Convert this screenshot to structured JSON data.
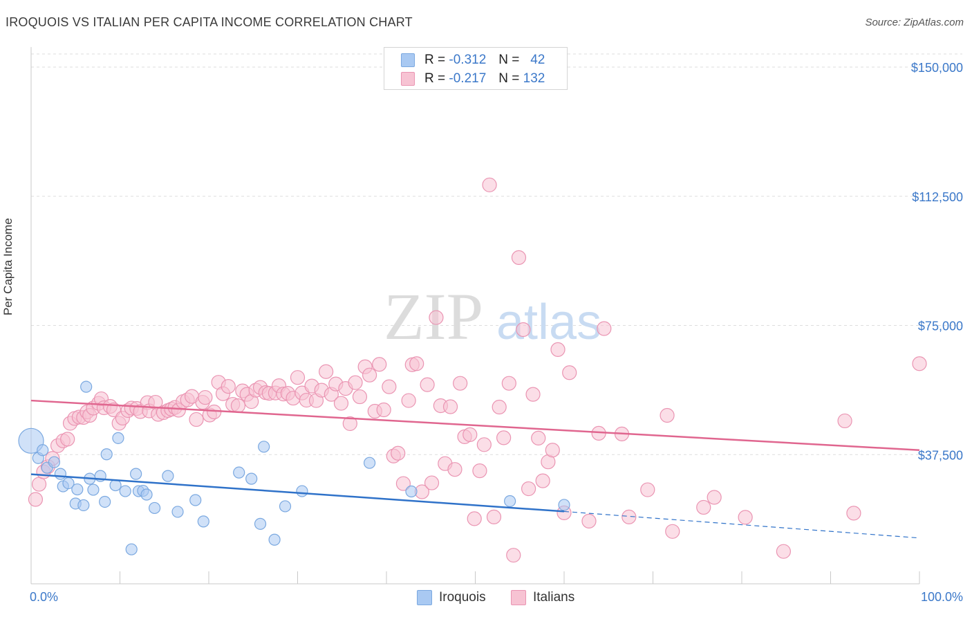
{
  "title": "IROQUOIS VS ITALIAN PER CAPITA INCOME CORRELATION CHART",
  "source": "Source: ZipAtlas.com",
  "watermark": {
    "zip": "ZIP",
    "atlas": "atlas"
  },
  "legend": {
    "rows": [
      {
        "r_label": "R =",
        "r_value": "-0.312",
        "n_label": "N =",
        "n_value": "42",
        "color": "#a9c9f2",
        "border": "#7aa8e0"
      },
      {
        "r_label": "R =",
        "r_value": "-0.217",
        "n_label": "N =",
        "n_value": "132",
        "color": "#f7c3d3",
        "border": "#ea94b2"
      }
    ]
  },
  "bottom_legend": [
    {
      "label": "Iroquois",
      "color": "#a9c9f2",
      "border": "#7aa8e0"
    },
    {
      "label": "Italians",
      "color": "#f7c3d3",
      "border": "#ea94b2"
    }
  ],
  "chart_data": {
    "type": "scatter",
    "title": "IROQUOIS VS ITALIAN PER CAPITA INCOME CORRELATION CHART",
    "ylabel": "Per Capita Income",
    "xlabel": "",
    "xlim": [
      0,
      100
    ],
    "ylim": [
      0,
      155000
    ],
    "x_tick_labels": [
      "0.0%",
      "100.0%"
    ],
    "y_ticks": [
      37500,
      75000,
      112500,
      150000
    ],
    "y_tick_labels": [
      "$37,500",
      "$75,000",
      "$112,500",
      "$150,000"
    ],
    "grid": "horizontal dashed",
    "legend_position": "top-center",
    "series": [
      {
        "name": "Iroquois",
        "color": "#7aa8e0",
        "fill": "#a9c9f2",
        "r": -0.312,
        "n": 42,
        "trend": {
          "x0": 0,
          "y0": 31800,
          "x1": 60,
          "y1": 21000,
          "dash_to_x": 100,
          "dash_to_y": 13300
        },
        "points": [
          [
            0,
            41500,
            18
          ],
          [
            0.8,
            36500,
            8
          ],
          [
            1.3,
            38800,
            8
          ],
          [
            1.8,
            33700,
            8
          ],
          [
            2.6,
            35300,
            8
          ],
          [
            3.3,
            31900,
            8
          ],
          [
            3.6,
            28300,
            8
          ],
          [
            4.2,
            29200,
            8
          ],
          [
            5.0,
            23300,
            8
          ],
          [
            5.2,
            27400,
            8
          ],
          [
            5.9,
            22800,
            8
          ],
          [
            6.2,
            57200,
            8
          ],
          [
            6.6,
            30500,
            8
          ],
          [
            7.0,
            27300,
            8
          ],
          [
            7.8,
            31300,
            8
          ],
          [
            8.3,
            23800,
            8
          ],
          [
            8.5,
            37600,
            8
          ],
          [
            9.5,
            28600,
            8
          ],
          [
            9.8,
            42300,
            8
          ],
          [
            10.6,
            26900,
            8
          ],
          [
            11.3,
            10000,
            8
          ],
          [
            11.8,
            31900,
            8
          ],
          [
            12.1,
            26900,
            8
          ],
          [
            12.6,
            27000,
            8
          ],
          [
            13.0,
            25900,
            8
          ],
          [
            13.9,
            22000,
            8
          ],
          [
            15.4,
            31300,
            8
          ],
          [
            16.5,
            20900,
            8
          ],
          [
            18.5,
            24300,
            8
          ],
          [
            19.4,
            18100,
            8
          ],
          [
            23.4,
            32300,
            8
          ],
          [
            24.8,
            30500,
            8
          ],
          [
            25.8,
            17400,
            8
          ],
          [
            26.2,
            39800,
            8
          ],
          [
            27.4,
            12800,
            8
          ],
          [
            28.6,
            22500,
            8
          ],
          [
            30.5,
            26900,
            8
          ],
          [
            38.1,
            35100,
            8
          ],
          [
            42.8,
            26800,
            8
          ],
          [
            53.9,
            24000,
            8
          ],
          [
            60.0,
            22900,
            8
          ],
          [
            0.3,
            26000,
            0
          ]
        ]
      },
      {
        "name": "Italians",
        "color": "#ea94b2",
        "fill": "#f7c3d3",
        "r": -0.217,
        "n": 132,
        "trend": {
          "x0": 0,
          "y0": 53200,
          "x1": 100,
          "y1": 38800
        },
        "points": [
          [
            0.5,
            24500,
            10
          ],
          [
            0.9,
            28900,
            10
          ],
          [
            1.4,
            32500,
            10
          ],
          [
            1.9,
            34000,
            10
          ],
          [
            2.4,
            36400,
            10
          ],
          [
            3.0,
            40100,
            10
          ],
          [
            3.6,
            41500,
            10
          ],
          [
            4.1,
            42000,
            10
          ],
          [
            4.4,
            46600,
            10
          ],
          [
            4.9,
            48000,
            10
          ],
          [
            5.4,
            48400,
            10
          ],
          [
            5.9,
            48300,
            10
          ],
          [
            6.3,
            49900,
            10
          ],
          [
            6.6,
            48900,
            10
          ],
          [
            7.0,
            51000,
            10
          ],
          [
            7.6,
            52400,
            10
          ],
          [
            7.9,
            53700,
            10
          ],
          [
            8.2,
            51100,
            10
          ],
          [
            8.9,
            51500,
            10
          ],
          [
            9.3,
            50500,
            10
          ],
          [
            9.9,
            46600,
            10
          ],
          [
            10.3,
            48100,
            10
          ],
          [
            10.9,
            50300,
            10
          ],
          [
            11.3,
            51000,
            10
          ],
          [
            11.9,
            50900,
            10
          ],
          [
            12.3,
            50000,
            10
          ],
          [
            13.1,
            52600,
            10
          ],
          [
            13.3,
            50200,
            10
          ],
          [
            14.0,
            52700,
            10
          ],
          [
            14.3,
            49200,
            10
          ],
          [
            14.9,
            49700,
            10
          ],
          [
            15.4,
            50300,
            10
          ],
          [
            15.8,
            50700,
            10
          ],
          [
            16.2,
            51200,
            10
          ],
          [
            16.6,
            50400,
            10
          ],
          [
            17.1,
            52900,
            10
          ],
          [
            17.6,
            53400,
            10
          ],
          [
            18.1,
            54400,
            10
          ],
          [
            18.6,
            47700,
            10
          ],
          [
            19.3,
            52700,
            10
          ],
          [
            19.6,
            54100,
            10
          ],
          [
            20.1,
            49000,
            10
          ],
          [
            20.6,
            49900,
            10
          ],
          [
            21.1,
            58500,
            10
          ],
          [
            21.6,
            55200,
            10
          ],
          [
            22.2,
            57300,
            10
          ],
          [
            22.7,
            52100,
            10
          ],
          [
            23.3,
            51700,
            10
          ],
          [
            23.8,
            56000,
            10
          ],
          [
            24.3,
            55000,
            10
          ],
          [
            24.8,
            52900,
            10
          ],
          [
            25.3,
            56200,
            10
          ],
          [
            25.8,
            57000,
            10
          ],
          [
            26.4,
            55500,
            10
          ],
          [
            26.8,
            55300,
            10
          ],
          [
            27.5,
            55400,
            10
          ],
          [
            27.9,
            57500,
            10
          ],
          [
            28.4,
            55100,
            10
          ],
          [
            28.9,
            55300,
            10
          ],
          [
            29.5,
            53900,
            10
          ],
          [
            30.0,
            59900,
            10
          ],
          [
            30.5,
            55400,
            10
          ],
          [
            31.0,
            53300,
            10
          ],
          [
            31.6,
            57400,
            10
          ],
          [
            32.1,
            53200,
            10
          ],
          [
            32.7,
            56200,
            10
          ],
          [
            33.2,
            61600,
            10
          ],
          [
            33.8,
            55000,
            10
          ],
          [
            34.3,
            58000,
            10
          ],
          [
            34.9,
            52400,
            10
          ],
          [
            35.4,
            56700,
            10
          ],
          [
            35.9,
            46500,
            10
          ],
          [
            36.5,
            58400,
            10
          ],
          [
            37.0,
            54300,
            10
          ],
          [
            37.6,
            63000,
            10
          ],
          [
            38.1,
            60600,
            10
          ],
          [
            38.7,
            50100,
            10
          ],
          [
            39.2,
            63700,
            10
          ],
          [
            39.7,
            50500,
            10
          ],
          [
            40.3,
            57200,
            10
          ],
          [
            40.8,
            37100,
            10
          ],
          [
            41.3,
            37900,
            10
          ],
          [
            41.9,
            29100,
            10
          ],
          [
            42.5,
            53200,
            10
          ],
          [
            42.9,
            63600,
            10
          ],
          [
            43.4,
            63900,
            10
          ],
          [
            44.0,
            26700,
            10
          ],
          [
            44.6,
            57800,
            10
          ],
          [
            45.1,
            29300,
            10
          ],
          [
            45.6,
            77300,
            10
          ],
          [
            46.1,
            51700,
            10
          ],
          [
            46.6,
            34900,
            10
          ],
          [
            47.2,
            51400,
            10
          ],
          [
            47.7,
            33200,
            10
          ],
          [
            48.3,
            58200,
            10
          ],
          [
            48.8,
            42700,
            10
          ],
          [
            49.4,
            43300,
            10
          ],
          [
            49.9,
            18900,
            10
          ],
          [
            50.5,
            32800,
            10
          ],
          [
            51.0,
            40400,
            10
          ],
          [
            51.6,
            115800,
            10
          ],
          [
            52.1,
            19400,
            10
          ],
          [
            52.7,
            51300,
            10
          ],
          [
            53.2,
            42400,
            10
          ],
          [
            53.8,
            58200,
            10
          ],
          [
            54.3,
            8300,
            10
          ],
          [
            54.9,
            94700,
            10
          ],
          [
            55.4,
            73800,
            10
          ],
          [
            56.0,
            27600,
            10
          ],
          [
            56.5,
            55000,
            10
          ],
          [
            57.1,
            42300,
            10
          ],
          [
            57.6,
            29900,
            10
          ],
          [
            58.2,
            35400,
            10
          ],
          [
            58.7,
            38800,
            10
          ],
          [
            59.3,
            68000,
            10
          ],
          [
            60.0,
            20600,
            10
          ],
          [
            60.6,
            61300,
            10
          ],
          [
            62.8,
            18200,
            10
          ],
          [
            63.9,
            43700,
            10
          ],
          [
            64.5,
            74100,
            10
          ],
          [
            66.5,
            43500,
            10
          ],
          [
            67.3,
            19400,
            10
          ],
          [
            69.4,
            27300,
            10
          ],
          [
            71.6,
            48900,
            10
          ],
          [
            72.2,
            15200,
            10
          ],
          [
            75.7,
            22200,
            10
          ],
          [
            76.9,
            25100,
            10
          ],
          [
            80.4,
            19300,
            10
          ],
          [
            84.7,
            9400,
            10
          ],
          [
            91.6,
            47300,
            10
          ],
          [
            92.6,
            20500,
            10
          ],
          [
            100.0,
            63900,
            10
          ]
        ]
      }
    ]
  }
}
